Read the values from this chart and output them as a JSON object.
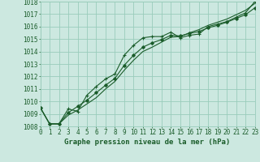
{
  "xlabel": "Graphe pression niveau de la mer (hPa)",
  "ylim": [
    1008,
    1018
  ],
  "xlim": [
    0,
    23
  ],
  "yticks": [
    1008,
    1009,
    1010,
    1011,
    1012,
    1013,
    1014,
    1015,
    1016,
    1017,
    1018
  ],
  "xticks": [
    0,
    1,
    2,
    3,
    4,
    5,
    6,
    7,
    8,
    9,
    10,
    11,
    12,
    13,
    14,
    15,
    16,
    17,
    18,
    19,
    20,
    21,
    22,
    23
  ],
  "bg_color": "#cce8e0",
  "grid_color": "#99ccbb",
  "line_color": "#1a5c2a",
  "line1_y": [
    1009.5,
    1008.2,
    1008.2,
    1009.4,
    1009.2,
    1010.5,
    1011.2,
    1011.8,
    1012.2,
    1013.7,
    1014.5,
    1015.1,
    1015.2,
    1015.2,
    1015.55,
    1015.1,
    1015.3,
    1015.4,
    1016.0,
    1016.2,
    1016.4,
    1016.75,
    1017.1,
    1018.0
  ],
  "line2_y": [
    1009.5,
    1008.2,
    1008.2,
    1009.1,
    1009.6,
    1010.1,
    1010.7,
    1011.3,
    1011.85,
    1012.9,
    1013.7,
    1014.35,
    1014.7,
    1014.95,
    1015.3,
    1015.25,
    1015.45,
    1015.6,
    1015.9,
    1016.1,
    1016.35,
    1016.65,
    1016.95,
    1017.5
  ],
  "line3_y": [
    1009.5,
    1008.2,
    1008.2,
    1008.9,
    1009.3,
    1009.8,
    1010.3,
    1011.0,
    1011.6,
    1012.5,
    1013.3,
    1014.0,
    1014.35,
    1014.75,
    1015.15,
    1015.2,
    1015.5,
    1015.75,
    1016.1,
    1016.35,
    1016.6,
    1016.95,
    1017.3,
    1017.85
  ],
  "tick_fontsize": 5.5,
  "xlabel_fontsize": 6.5
}
